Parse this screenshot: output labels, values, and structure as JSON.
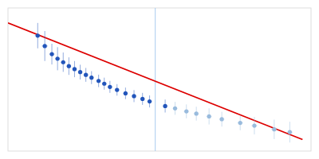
{
  "chart_data": {
    "type": "scatter",
    "tick_labels": false,
    "xlim": [
      -0.02,
      1.05
    ],
    "ylim": [
      0.28,
      0.9
    ],
    "vline": {
      "x": 0.5,
      "color": "#aaccee"
    },
    "series": [
      {
        "type": "scatter",
        "color": "#2255bb",
        "x": [
          0.085,
          0.11,
          0.135,
          0.155,
          0.175,
          0.195,
          0.215,
          0.235,
          0.255,
          0.275,
          0.3,
          0.32,
          0.34,
          0.365,
          0.395,
          0.425,
          0.455,
          0.48,
          0.535
        ],
        "values": [
          0.78,
          0.735,
          0.7,
          0.68,
          0.665,
          0.648,
          0.635,
          0.622,
          0.61,
          0.598,
          0.584,
          0.572,
          0.558,
          0.545,
          0.53,
          0.518,
          0.506,
          0.495,
          0.475
        ],
        "yerr": [
          0.055,
          0.065,
          0.045,
          0.05,
          0.042,
          0.038,
          0.035,
          0.032,
          0.03,
          0.028,
          0.027,
          0.026,
          0.026,
          0.025,
          0.025,
          0.026,
          0.026,
          0.026,
          0.028
        ],
        "xerr": [
          0.01,
          0.01,
          0.009,
          0.009,
          0.008,
          0.008,
          0.008,
          0.008,
          0.008,
          0.008,
          0.008,
          0.008,
          0.008,
          0.008,
          0.008,
          0.008,
          0.008,
          0.008,
          0.008
        ]
      },
      {
        "type": "scatter",
        "color": "#99bbdd",
        "x": [
          0.57,
          0.61,
          0.645,
          0.69,
          0.735,
          0.8,
          0.85,
          0.92,
          0.975
        ],
        "values": [
          0.465,
          0.452,
          0.442,
          0.43,
          0.418,
          0.402,
          0.39,
          0.374,
          0.362
        ],
        "yerr": [
          0.028,
          0.03,
          0.03,
          0.035,
          0.032,
          0.032,
          0.038,
          0.042,
          0.045
        ],
        "xerr": [
          0.008,
          0.009,
          0.009,
          0.009,
          0.009,
          0.009,
          0.01,
          0.01,
          0.01
        ]
      },
      {
        "type": "line",
        "color": "#dd0000",
        "x": [
          -0.02,
          1.02
        ],
        "values": [
          0.835,
          0.33
        ]
      }
    ]
  }
}
